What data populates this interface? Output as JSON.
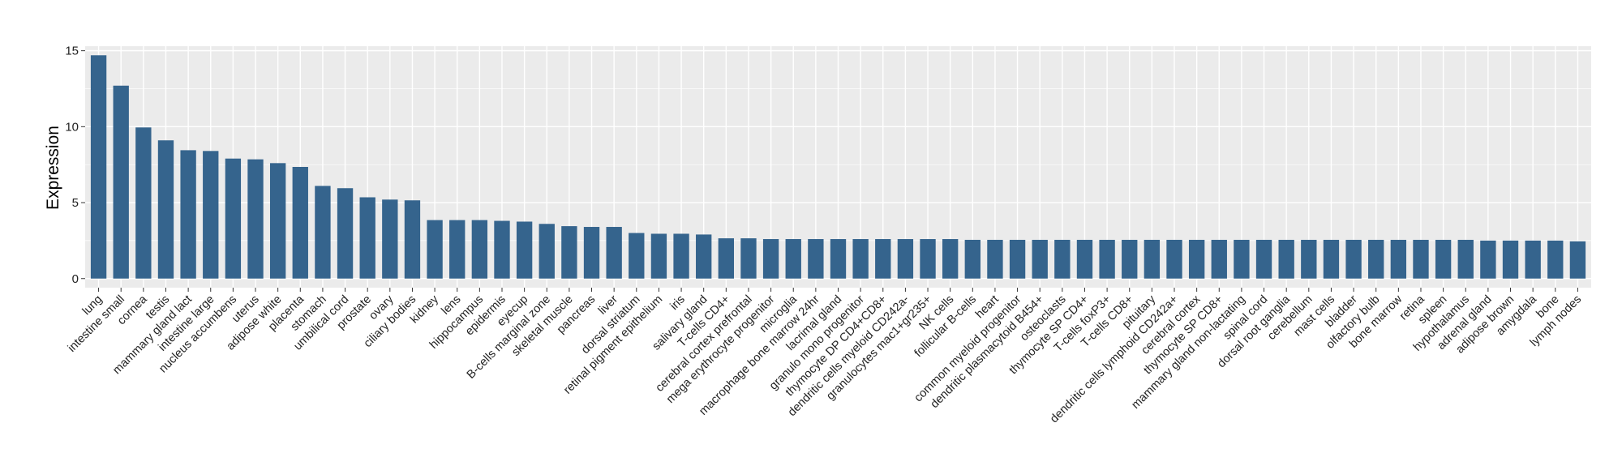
{
  "chart_data": {
    "type": "bar",
    "title": "",
    "xlabel": "",
    "ylabel": "Expression",
    "ylim": [
      -0.6,
      15.3
    ],
    "yticks": [
      0,
      5,
      10,
      15
    ],
    "grid": true,
    "bar_color": "#35648d",
    "panel_color": "#ebebeb",
    "categories": [
      "lung",
      "intestine small",
      "cornea",
      "testis",
      "mammary gland lact",
      "intestine large",
      "nucleus accumbens",
      "uterus",
      "adipose white",
      "placenta",
      "stomach",
      "umbilical cord",
      "prostate",
      "ovary",
      "ciliary bodies",
      "kidney",
      "lens",
      "hippocampus",
      "epidermis",
      "eyecup",
      "B-cells marginal zone",
      "skeletal muscle",
      "pancreas",
      "liver",
      "dorsal striatum",
      "retinal pigment epithelium",
      "iris",
      "salivary gland",
      "T-cells CD4+",
      "cerebral cortex prefrontal",
      "mega erythrocyte progenitor",
      "microglia",
      "macrophage bone marrow 24hr",
      "lacrimal gland",
      "granulo mono progenitor",
      "thymocyte DP CD4+CD8+",
      "dendritic cells myeloid CD242a-",
      "granulocytes mac1+gr235+",
      "NK cells",
      "follicular B-cells",
      "heart",
      "common myeloid progenitor",
      "dendritic plasmacytoid B454+",
      "osteoclasts",
      "thymocyte SP CD4+",
      "T-cells foxP3+",
      "T-cells CD8+",
      "pituitary",
      "dendritic cells lymphoid CD242a+",
      "cerebral cortex",
      "thymocyte SP CD8+",
      "mammary gland non-lactating",
      "spinal cord",
      "dorsal root ganglia",
      "cerebellum",
      "mast cells",
      "bladder",
      "olfactory bulb",
      "bone marrow",
      "retina",
      "spleen",
      "hypothalamus",
      "adrenal gland",
      "adipose brown",
      "amygdala",
      "bone",
      "lymph nodes"
    ],
    "values": [
      14.7,
      12.7,
      9.95,
      9.1,
      8.45,
      8.4,
      7.9,
      7.85,
      7.6,
      7.35,
      6.1,
      5.95,
      5.35,
      5.2,
      5.15,
      3.85,
      3.85,
      3.85,
      3.8,
      3.75,
      3.6,
      3.45,
      3.4,
      3.4,
      3.0,
      2.95,
      2.95,
      2.9,
      2.65,
      2.65,
      2.6,
      2.6,
      2.6,
      2.6,
      2.6,
      2.6,
      2.6,
      2.6,
      2.6,
      2.55,
      2.55,
      2.55,
      2.55,
      2.55,
      2.55,
      2.55,
      2.55,
      2.55,
      2.55,
      2.55,
      2.55,
      2.55,
      2.55,
      2.55,
      2.55,
      2.55,
      2.55,
      2.55,
      2.55,
      2.55,
      2.55,
      2.55,
      2.5,
      2.5,
      2.5,
      2.5,
      2.45
    ]
  }
}
